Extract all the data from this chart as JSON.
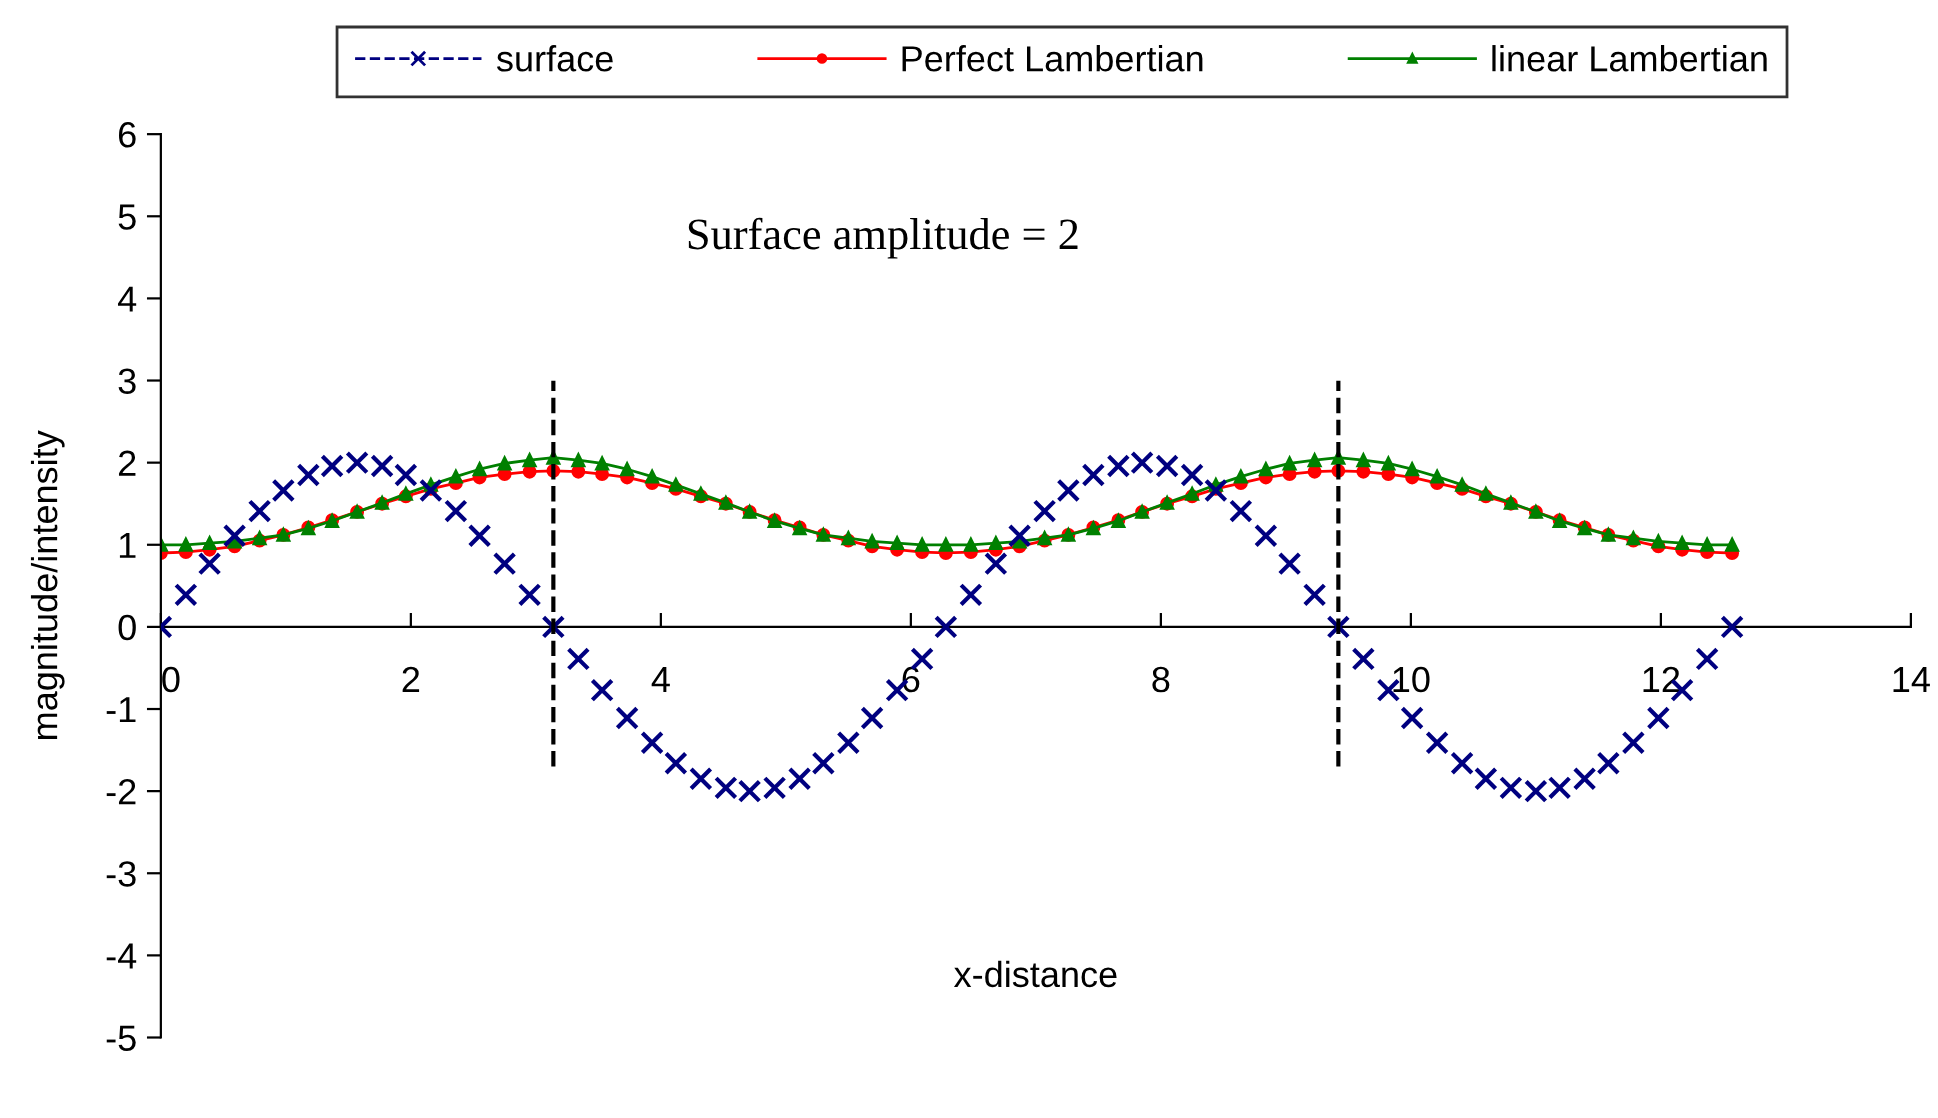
{
  "chart_data": {
    "type": "line",
    "annotations": [
      "Surface amplitude = 2"
    ],
    "xlabel": "x-distance",
    "ylabel": "magnitude/intensity",
    "x": [
      0,
      0.2,
      0.39,
      0.59,
      0.79,
      0.98,
      1.18,
      1.37,
      1.57,
      1.77,
      1.96,
      2.16,
      2.36,
      2.55,
      2.75,
      2.95,
      3.14,
      3.34,
      3.53,
      3.73,
      3.93,
      4.12,
      4.32,
      4.52,
      4.71,
      4.91,
      5.11,
      5.3,
      5.5,
      5.69,
      5.89,
      6.09,
      6.28,
      6.48,
      6.68,
      6.87,
      7.07,
      7.26,
      7.46,
      7.66,
      7.85,
      8.05,
      8.25,
      8.44,
      8.64,
      8.84,
      9.03,
      9.23,
      9.42,
      9.62,
      9.82,
      10.01,
      10.21,
      10.41,
      10.6,
      10.8,
      11.0,
      11.19,
      11.39,
      11.58,
      11.78,
      11.98,
      12.17,
      12.37,
      12.57
    ],
    "series": [
      {
        "name": "surface",
        "color": "#000080",
        "type": "scatter",
        "marker": "cross",
        "line_style": "dashed",
        "values": [
          0,
          0.39,
          0.77,
          1.11,
          1.41,
          1.66,
          1.85,
          1.96,
          2,
          1.96,
          1.85,
          1.66,
          1.41,
          1.11,
          0.77,
          0.39,
          0,
          -0.39,
          -0.77,
          -1.11,
          -1.41,
          -1.66,
          -1.85,
          -1.96,
          -2,
          -1.96,
          -1.85,
          -1.66,
          -1.41,
          -1.11,
          -0.77,
          -0.39,
          0,
          0.39,
          0.77,
          1.11,
          1.41,
          1.66,
          1.85,
          1.96,
          2,
          1.96,
          1.85,
          1.66,
          1.41,
          1.11,
          0.77,
          0.39,
          0,
          -0.39,
          -0.77,
          -1.11,
          -1.41,
          -1.66,
          -1.85,
          -1.96,
          -2,
          -1.96,
          -1.85,
          -1.66,
          -1.41,
          -1.11,
          -0.77,
          -0.39,
          0
        ]
      },
      {
        "name": "Perfect Lambertian",
        "color": "#ff0000",
        "marker": "circle",
        "line_style": "solid",
        "values": [
          0.9,
          0.91,
          0.94,
          0.98,
          1.05,
          1.12,
          1.21,
          1.3,
          1.4,
          1.5,
          1.59,
          1.68,
          1.75,
          1.82,
          1.86,
          1.89,
          1.9,
          1.89,
          1.86,
          1.82,
          1.75,
          1.68,
          1.59,
          1.5,
          1.4,
          1.3,
          1.21,
          1.12,
          1.05,
          0.98,
          0.94,
          0.91,
          0.9,
          0.91,
          0.94,
          0.98,
          1.05,
          1.12,
          1.21,
          1.3,
          1.4,
          1.5,
          1.59,
          1.68,
          1.75,
          1.82,
          1.86,
          1.89,
          1.9,
          1.89,
          1.86,
          1.82,
          1.75,
          1.68,
          1.59,
          1.5,
          1.4,
          1.3,
          1.21,
          1.12,
          1.05,
          0.98,
          0.94,
          0.91,
          0.9
        ]
      },
      {
        "name": "linear Lambertian",
        "color": "#008000",
        "marker": "triangle",
        "line_style": "solid",
        "values": [
          1,
          1,
          1.02,
          1.04,
          1.08,
          1.12,
          1.2,
          1.29,
          1.4,
          1.51,
          1.62,
          1.73,
          1.83,
          1.92,
          1.99,
          2.03,
          2.06,
          2.03,
          1.99,
          1.92,
          1.83,
          1.73,
          1.62,
          1.51,
          1.4,
          1.29,
          1.2,
          1.12,
          1.08,
          1.04,
          1.02,
          1,
          1,
          1,
          1.02,
          1.04,
          1.08,
          1.12,
          1.2,
          1.29,
          1.4,
          1.51,
          1.62,
          1.73,
          1.83,
          1.92,
          1.99,
          2.03,
          2.06,
          2.03,
          1.99,
          1.92,
          1.83,
          1.73,
          1.62,
          1.51,
          1.4,
          1.29,
          1.2,
          1.12,
          1.08,
          1.04,
          1.02,
          1,
          1
        ]
      }
    ],
    "ref_lines": [
      {
        "axis": "x",
        "value": 3.14,
        "color": "#000000",
        "line_style": "dashed"
      },
      {
        "axis": "x",
        "value": 9.42,
        "color": "#000000",
        "line_style": "dashed"
      }
    ],
    "xlim": [
      0,
      14
    ],
    "xticks": [
      0,
      2,
      4,
      6,
      8,
      10,
      12,
      14
    ],
    "ylim": [
      -5,
      6
    ],
    "yticks": [
      {
        "value": -5,
        "label": "-5"
      },
      {
        "value": -4,
        "label": "-4"
      },
      {
        "value": -3,
        "label": "-3"
      },
      {
        "value": -2,
        "label": "-2"
      },
      {
        "value": -1,
        "label": "-1"
      },
      0,
      1,
      2,
      3,
      4,
      5,
      6
    ],
    "grid": false,
    "legend": "top"
  }
}
